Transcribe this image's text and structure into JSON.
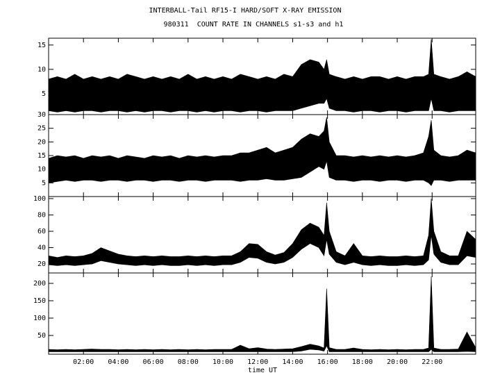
{
  "chart_data": [
    {
      "type": "band",
      "title": "INTERBALL-Tail RF15-I HARD/SOFT X-RAY EMISSION",
      "subtitle": "980311  COUNT RATE IN CHANNELS s1-s3 and h1",
      "color": "#000000",
      "xlim": [
        0,
        24.5
      ],
      "ylim": [
        0.7,
        16.4
      ],
      "yticks": [
        5,
        10,
        15
      ],
      "x": [
        0,
        0.5,
        1,
        1.5,
        2,
        2.5,
        3,
        3.5,
        4,
        4.5,
        5,
        5.5,
        6,
        6.5,
        7,
        7.5,
        8,
        8.5,
        9,
        9.5,
        10,
        10.5,
        11,
        11.5,
        12,
        12.5,
        13,
        13.5,
        14,
        14.5,
        15,
        15.5,
        15.8,
        15.95,
        16.1,
        16.5,
        17,
        17.5,
        18,
        18.5,
        19,
        19.5,
        20,
        20.5,
        21,
        21.5,
        21.8,
        21.95,
        22.1,
        22.5,
        23,
        23.5,
        24,
        24.5
      ],
      "series": [
        {
          "values": [
            8,
            8.5,
            8,
            9,
            8,
            8.5,
            8,
            8.5,
            8,
            9,
            8.5,
            8,
            8.5,
            8,
            8.5,
            8,
            9,
            8,
            8.5,
            8,
            8.5,
            8,
            9,
            8.5,
            8,
            8.5,
            8,
            9,
            8.5,
            11,
            12,
            11.5,
            10,
            12,
            9,
            8.5,
            8,
            8.5,
            8,
            8.5,
            8.5,
            8,
            8.5,
            8,
            8.5,
            8.5,
            9,
            16.2,
            9,
            8.5,
            8,
            8.5,
            9.5,
            8.5
          ]
        },
        {
          "values": [
            1.5,
            1.2,
            1.5,
            1.2,
            1.5,
            1.5,
            1.2,
            1.5,
            1.5,
            1.2,
            1.5,
            1.2,
            1.5,
            1.5,
            1.2,
            1.5,
            1.5,
            1.2,
            1.5,
            1.2,
            1.5,
            1.5,
            1.2,
            1.5,
            1.5,
            1.2,
            1.5,
            1.5,
            1.5,
            2,
            2.5,
            3,
            3,
            4,
            2,
            1.5,
            1.5,
            1.2,
            1.5,
            1.5,
            1.2,
            1.5,
            1.5,
            1.2,
            1.5,
            1.5,
            1.5,
            4,
            1.5,
            1.5,
            1.2,
            1.5,
            1.5,
            1.5
          ]
        }
      ]
    },
    {
      "type": "band",
      "color": "#000000",
      "xlim": [
        0,
        24.5
      ],
      "ylim": [
        0,
        30
      ],
      "yticks": [
        5,
        10,
        15,
        20,
        25,
        30
      ],
      "x": [
        0,
        0.5,
        1,
        1.5,
        2,
        2.5,
        3,
        3.5,
        4,
        4.5,
        5,
        5.5,
        6,
        6.5,
        7,
        7.5,
        8,
        8.5,
        9,
        9.5,
        10,
        10.5,
        11,
        11.5,
        12,
        12.5,
        13,
        13.5,
        14,
        14.5,
        15,
        15.5,
        15.8,
        15.95,
        16.1,
        16.5,
        17,
        17.5,
        18,
        18.5,
        19,
        19.5,
        20,
        20.5,
        21,
        21.5,
        21.8,
        21.95,
        22.1,
        22.5,
        23,
        23.5,
        24,
        24.5
      ],
      "series": [
        {
          "values": [
            14,
            15,
            14.5,
            15,
            14,
            15,
            14.5,
            15,
            14,
            15,
            14.5,
            14,
            15,
            14.5,
            15,
            14,
            15,
            14.5,
            15,
            14.5,
            15,
            15,
            16,
            16,
            17,
            18,
            16,
            17,
            18,
            21,
            23,
            22,
            24,
            29,
            20,
            15,
            15,
            14.5,
            15,
            14.5,
            15,
            14.5,
            15,
            14.5,
            15,
            16,
            22,
            28,
            17,
            15,
            14.5,
            15,
            17,
            16
          ]
        },
        {
          "values": [
            5,
            5.5,
            6,
            5.5,
            6,
            6,
            5.5,
            6,
            6,
            5.5,
            6,
            6,
            5.5,
            6,
            6,
            5.5,
            6,
            6,
            5.5,
            6,
            6,
            6,
            5.5,
            6,
            6,
            6.5,
            6,
            6,
            6.5,
            7,
            9,
            11,
            10,
            13,
            7,
            6,
            6,
            5.5,
            6,
            6,
            5.5,
            6,
            6,
            5.5,
            6,
            6,
            5,
            4,
            6,
            6,
            5.5,
            6,
            6,
            6
          ]
        }
      ]
    },
    {
      "type": "band",
      "color": "#000000",
      "xlim": [
        0,
        24.5
      ],
      "ylim": [
        9,
        102.5
      ],
      "yticks": [
        20,
        40,
        60,
        80,
        100
      ],
      "x": [
        0,
        0.5,
        1,
        1.5,
        2,
        2.5,
        3,
        3.5,
        4,
        4.5,
        5,
        5.5,
        6,
        6.5,
        7,
        7.5,
        8,
        8.5,
        9,
        9.5,
        10,
        10.5,
        11,
        11.5,
        12,
        12.5,
        13,
        13.5,
        14,
        14.5,
        15,
        15.5,
        15.8,
        15.95,
        16.1,
        16.5,
        17,
        17.5,
        18,
        18.5,
        19,
        19.5,
        20,
        20.5,
        21,
        21.5,
        21.8,
        21.95,
        22.1,
        22.5,
        23,
        23.5,
        24,
        24.5
      ],
      "series": [
        {
          "values": [
            30,
            28,
            30,
            29,
            30,
            33,
            40,
            36,
            32,
            30,
            29,
            30,
            29,
            30,
            29,
            29,
            30,
            29,
            30,
            29,
            30,
            30,
            35,
            45,
            44,
            35,
            31,
            34,
            45,
            62,
            70,
            65,
            55,
            95,
            60,
            35,
            30,
            45,
            30,
            29,
            30,
            29,
            29,
            30,
            29,
            30,
            55,
            100,
            60,
            35,
            30,
            30,
            60,
            50
          ]
        },
        {
          "values": [
            19,
            18,
            19,
            18,
            19,
            20,
            24,
            22,
            20,
            19,
            18,
            19,
            18,
            19,
            18,
            18,
            19,
            18,
            19,
            18,
            19,
            19,
            22,
            28,
            27,
            22,
            20,
            22,
            28,
            38,
            45,
            40,
            30,
            50,
            32,
            22,
            19,
            22,
            19,
            18,
            19,
            18,
            18,
            19,
            18,
            19,
            25,
            55,
            32,
            22,
            19,
            19,
            30,
            28
          ]
        }
      ]
    },
    {
      "type": "band",
      "color": "#000000",
      "xlabel": "time UT",
      "xlim": [
        0,
        24.5
      ],
      "ylim": [
        -4,
        230
      ],
      "yticks": [
        50,
        100,
        150,
        200
      ],
      "xticks": [
        {
          "value": 2,
          "label": "02:00"
        },
        {
          "value": 4,
          "label": "04:00"
        },
        {
          "value": 6,
          "label": "06:00"
        },
        {
          "value": 8,
          "label": "08:00"
        },
        {
          "value": 10,
          "label": "10:00"
        },
        {
          "value": 12,
          "label": "12:00"
        },
        {
          "value": 14,
          "label": "14:00"
        },
        {
          "value": 16,
          "label": "16:00"
        },
        {
          "value": 18,
          "label": "18:00"
        },
        {
          "value": 20,
          "label": "20:00"
        },
        {
          "value": 22,
          "label": "22:00"
        }
      ],
      "x": [
        0,
        0.5,
        1,
        1.5,
        2,
        2.5,
        3,
        3.5,
        4,
        4.5,
        5,
        5.5,
        6,
        6.5,
        7,
        7.5,
        8,
        8.5,
        9,
        9.5,
        10,
        10.5,
        11,
        11.5,
        12,
        12.5,
        13,
        13.5,
        14,
        14.5,
        15,
        15.5,
        15.8,
        15.95,
        16.1,
        16.5,
        17,
        17.5,
        18,
        18.5,
        19,
        19.5,
        20,
        20.5,
        21,
        21.5,
        21.8,
        21.95,
        22.1,
        22.5,
        23,
        23.5,
        24,
        24.5
      ],
      "series": [
        {
          "values": [
            10,
            9,
            10,
            9,
            10,
            11,
            10,
            10,
            9,
            10,
            9,
            10,
            9,
            10,
            9,
            10,
            9,
            10,
            9,
            10,
            10,
            10,
            22,
            12,
            15,
            11,
            10,
            11,
            12,
            18,
            25,
            20,
            14,
            185,
            15,
            10,
            10,
            14,
            10,
            9,
            10,
            9,
            10,
            9,
            10,
            10,
            14,
            220,
            14,
            10,
            10,
            11,
            60,
            15
          ]
        },
        {
          "values": [
            3,
            3,
            3,
            3,
            3,
            3,
            3,
            3,
            3,
            3,
            3,
            3,
            3,
            3,
            3,
            3,
            3,
            3,
            3,
            3,
            3,
            3,
            3,
            3,
            3,
            3,
            3,
            3,
            3,
            5,
            10,
            8,
            5,
            20,
            3,
            3,
            3,
            3,
            3,
            3,
            3,
            3,
            3,
            3,
            3,
            3,
            3,
            10,
            3,
            3,
            3,
            3,
            4,
            3
          ]
        }
      ]
    }
  ]
}
